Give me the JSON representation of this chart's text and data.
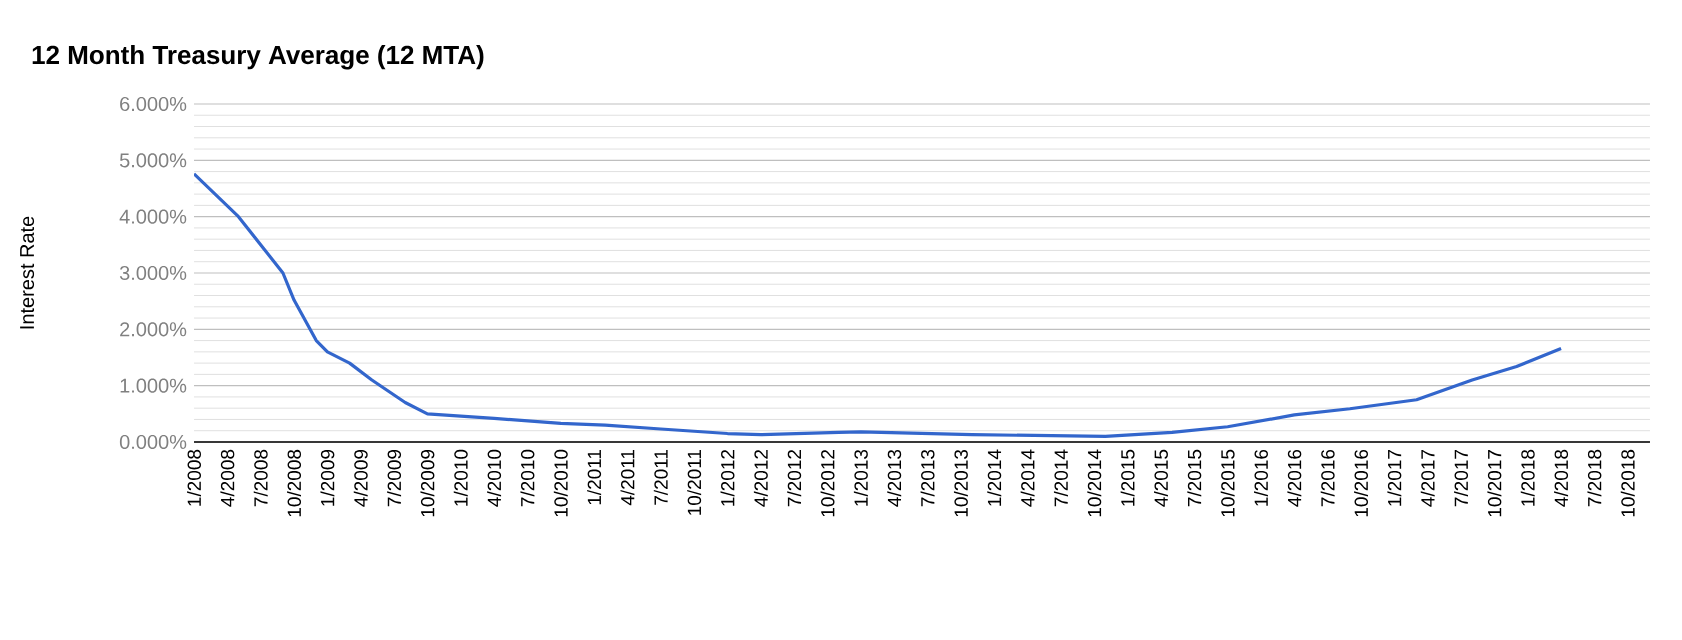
{
  "chart_data": {
    "type": "line",
    "title": "12 Month Treasury Average (12 MTA)",
    "ylabel": "Interest Rate",
    "x": [
      "2008-01",
      "2008-05",
      "2008-09",
      "2008-10",
      "2008-12",
      "2009-01",
      "2009-03",
      "2009-05",
      "2009-08",
      "2009-10",
      "2010-04",
      "2010-10",
      "2011-02",
      "2011-07",
      "2012-01",
      "2012-04",
      "2012-11",
      "2013-01",
      "2013-11",
      "2014-11",
      "2015-05",
      "2015-10",
      "2016-04",
      "2016-09",
      "2017-03",
      "2017-08",
      "2017-12",
      "2018-04"
    ],
    "series": [
      {
        "color": "#3366cc",
        "values": [
          4.76,
          4.0,
          3.0,
          2.52,
          1.8,
          1.6,
          1.4,
          1.1,
          0.7,
          0.5,
          0.42,
          0.33,
          0.3,
          0.23,
          0.15,
          0.13,
          0.17,
          0.18,
          0.13,
          0.1,
          0.17,
          0.27,
          0.48,
          0.59,
          0.75,
          1.1,
          1.34,
          1.66
        ]
      }
    ],
    "xlim": [
      "2008-01",
      "2018-12"
    ],
    "xticks": [
      {
        "value": "2008-01",
        "label": "1/2008"
      },
      {
        "value": "2008-04",
        "label": "4/2008"
      },
      {
        "value": "2008-07",
        "label": "7/2008"
      },
      {
        "value": "2008-10",
        "label": "10/2008"
      },
      {
        "value": "2009-01",
        "label": "1/2009"
      },
      {
        "value": "2009-04",
        "label": "4/2009"
      },
      {
        "value": "2009-07",
        "label": "7/2009"
      },
      {
        "value": "2009-10",
        "label": "10/2009"
      },
      {
        "value": "2010-01",
        "label": "1/2010"
      },
      {
        "value": "2010-04",
        "label": "4/2010"
      },
      {
        "value": "2010-07",
        "label": "7/2010"
      },
      {
        "value": "2010-10",
        "label": "10/2010"
      },
      {
        "value": "2011-01",
        "label": "1/2011"
      },
      {
        "value": "2011-04",
        "label": "4/2011"
      },
      {
        "value": "2011-07",
        "label": "7/2011"
      },
      {
        "value": "2011-10",
        "label": "10/2011"
      },
      {
        "value": "2012-01",
        "label": "1/2012"
      },
      {
        "value": "2012-04",
        "label": "4/2012"
      },
      {
        "value": "2012-07",
        "label": "7/2012"
      },
      {
        "value": "2012-10",
        "label": "10/2012"
      },
      {
        "value": "2013-01",
        "label": "1/2013"
      },
      {
        "value": "2013-04",
        "label": "4/2013"
      },
      {
        "value": "2013-07",
        "label": "7/2013"
      },
      {
        "value": "2013-10",
        "label": "10/2013"
      },
      {
        "value": "2014-01",
        "label": "1/2014"
      },
      {
        "value": "2014-04",
        "label": "4/2014"
      },
      {
        "value": "2014-07",
        "label": "7/2014"
      },
      {
        "value": "2014-10",
        "label": "10/2014"
      },
      {
        "value": "2015-01",
        "label": "1/2015"
      },
      {
        "value": "2015-04",
        "label": "4/2015"
      },
      {
        "value": "2015-07",
        "label": "7/2015"
      },
      {
        "value": "2015-10",
        "label": "10/2015"
      },
      {
        "value": "2016-01",
        "label": "1/2016"
      },
      {
        "value": "2016-04",
        "label": "4/2016"
      },
      {
        "value": "2016-07",
        "label": "7/2016"
      },
      {
        "value": "2016-10",
        "label": "10/2016"
      },
      {
        "value": "2017-01",
        "label": "1/2017"
      },
      {
        "value": "2017-04",
        "label": "4/2017"
      },
      {
        "value": "2017-07",
        "label": "7/2017"
      },
      {
        "value": "2017-10",
        "label": "10/2017"
      },
      {
        "value": "2018-01",
        "label": "1/2018"
      },
      {
        "value": "2018-04",
        "label": "4/2018"
      },
      {
        "value": "2018-07",
        "label": "7/2018"
      },
      {
        "value": "2018-10",
        "label": "10/2018"
      }
    ],
    "ylim": [
      0,
      6
    ],
    "yticks": [
      {
        "value": 0,
        "label": "0.000%"
      },
      {
        "value": 1,
        "label": "1.000%"
      },
      {
        "value": 2,
        "label": "2.000%"
      },
      {
        "value": 3,
        "label": "3.000%"
      },
      {
        "value": 4,
        "label": "4.000%"
      },
      {
        "value": 5,
        "label": "5.000%"
      },
      {
        "value": 6,
        "label": "6.000%"
      }
    ],
    "grid": "y",
    "marker": "none",
    "line_style": "solid"
  }
}
